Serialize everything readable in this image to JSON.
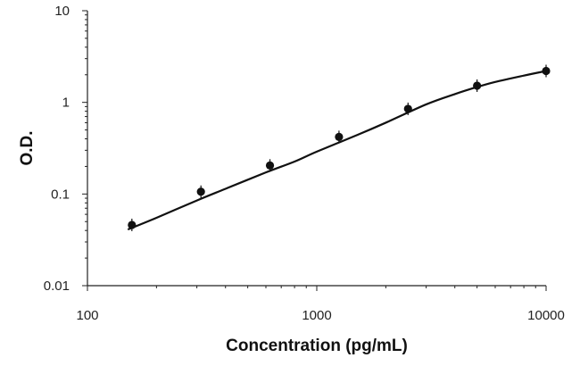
{
  "chart_data": {
    "type": "scatter",
    "title": "",
    "xlabel": "Concentration (pg/mL)",
    "ylabel": "O.D.",
    "xscale": "log",
    "yscale": "log",
    "xlim": [
      100,
      10000
    ],
    "ylim": [
      0.01,
      10
    ],
    "x_ticks": [
      100,
      1000,
      10000
    ],
    "x_tick_labels": [
      "100",
      "1000",
      "10000"
    ],
    "y_ticks": [
      0.01,
      0.1,
      1,
      10
    ],
    "y_tick_labels": [
      "0.01",
      "0.1",
      "1",
      "10"
    ],
    "grid": false,
    "legend": "none",
    "points": {
      "x": [
        156.25,
        312.5,
        625,
        1250,
        2500,
        5000,
        10000
      ],
      "y": [
        0.046,
        0.106,
        0.205,
        0.42,
        0.85,
        1.52,
        2.2
      ]
    },
    "fit_curve": {
      "x": [
        150,
        200,
        300,
        400,
        600,
        800,
        1000,
        1500,
        2000,
        3000,
        4000,
        5000,
        6000,
        8000,
        10000
      ],
      "y": [
        0.041,
        0.055,
        0.085,
        0.114,
        0.172,
        0.226,
        0.29,
        0.44,
        0.6,
        0.95,
        1.23,
        1.47,
        1.67,
        1.96,
        2.2
      ]
    },
    "colors": {
      "series": "#111111",
      "axis": "#222222"
    }
  }
}
